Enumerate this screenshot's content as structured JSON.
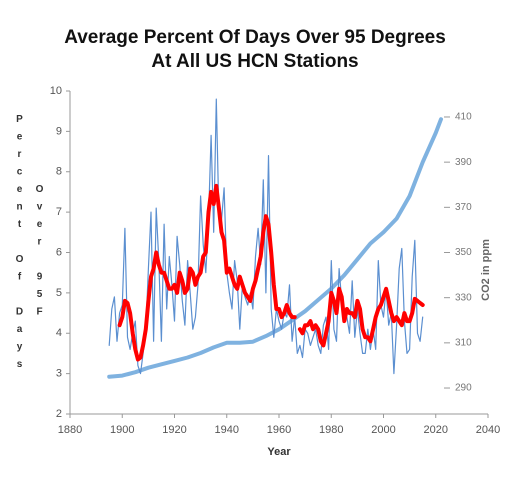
{
  "chart_data": {
    "type": "line",
    "title": [
      "Average Percent Of Days Over 95 Degrees",
      "At All US HCN Stations"
    ],
    "xlabel": "Year",
    "ylabel": [
      "Percent Of Days",
      "Over 95F"
    ],
    "y2label": "CO2 in ppm",
    "x": [
      1895,
      1896,
      1897,
      1898,
      1899,
      1900,
      1901,
      1902,
      1903,
      1904,
      1905,
      1906,
      1907,
      1908,
      1909,
      1910,
      1911,
      1912,
      1913,
      1914,
      1915,
      1916,
      1917,
      1918,
      1919,
      1920,
      1921,
      1922,
      1923,
      1924,
      1925,
      1926,
      1927,
      1928,
      1929,
      1930,
      1931,
      1932,
      1933,
      1934,
      1935,
      1936,
      1937,
      1938,
      1939,
      1940,
      1941,
      1942,
      1943,
      1944,
      1945,
      1946,
      1947,
      1948,
      1949,
      1950,
      1951,
      1952,
      1953,
      1954,
      1955,
      1956,
      1957,
      1958,
      1959,
      1960,
      1961,
      1962,
      1963,
      1964,
      1965,
      1966,
      1967,
      1968,
      1969,
      1970,
      1971,
      1972,
      1973,
      1974,
      1975,
      1976,
      1977,
      1978,
      1979,
      1980,
      1981,
      1982,
      1983,
      1984,
      1985,
      1986,
      1987,
      1988,
      1989,
      1990,
      1991,
      1992,
      1993,
      1994,
      1995,
      1996,
      1997,
      1998,
      1999,
      2000,
      2001,
      2002,
      2003,
      2004,
      2005,
      2006,
      2007,
      2008,
      2009,
      2010,
      2011,
      2012,
      2013,
      2014,
      2015
    ],
    "series": [
      {
        "color": "#5b8fd0",
        "values": [
          3.7,
          4.6,
          4.9,
          3.8,
          4.5,
          4.7,
          6.6,
          3.9,
          3.6,
          4.0,
          4.3,
          3.2,
          3.0,
          3.5,
          4.1,
          5.6,
          7.0,
          3.8,
          7.1,
          5.8,
          3.8,
          6.7,
          4.6,
          5.9,
          5.2,
          4.3,
          6.4,
          5.7,
          4.8,
          4.2,
          5.8,
          5.0,
          4.1,
          4.4,
          5.2,
          7.4,
          6.2,
          5.5,
          6.8,
          8.9,
          6.5,
          9.8,
          6.9,
          6.8,
          7.6,
          5.5,
          5.0,
          4.6,
          5.8,
          5.3,
          4.1,
          5.2,
          4.9,
          4.7,
          5.0,
          4.6,
          5.9,
          6.6,
          5.7,
          7.8,
          5.0,
          8.4,
          4.6,
          3.9,
          4.6,
          4.3,
          4.1,
          4.5,
          4.4,
          5.2,
          3.8,
          4.4,
          3.5,
          3.7,
          3.4,
          4.1,
          4.0,
          3.7,
          3.9,
          4.1,
          3.7,
          3.5,
          4.2,
          4.4,
          3.6,
          5.8,
          4.1,
          3.8,
          5.6,
          4.8,
          4.4,
          4.4,
          4.0,
          5.3,
          3.9,
          4.6,
          4.0,
          3.5,
          3.5,
          4.1,
          3.6,
          4.1,
          3.6,
          5.8,
          4.7,
          4.4,
          5.1,
          4.2,
          4.5,
          3.0,
          4.2,
          5.6,
          6.1,
          4.3,
          3.5,
          3.6,
          5.4,
          6.3,
          4.0,
          3.8,
          4.4
        ]
      },
      {
        "color": "#ff0000",
        "values": [
          null,
          null,
          null,
          null,
          4.2,
          4.4,
          4.8,
          4.75,
          4.5,
          4.0,
          3.6,
          3.35,
          3.4,
          3.7,
          4.1,
          4.8,
          5.4,
          5.6,
          6.0,
          5.7,
          5.5,
          5.5,
          5.3,
          5.1,
          5.1,
          5.2,
          5.0,
          5.5,
          5.3,
          5.0,
          5.1,
          5.6,
          5.5,
          5.2,
          5.4,
          5.5,
          5.9,
          6.0,
          7.0,
          7.5,
          7.2,
          7.65,
          7.1,
          6.5,
          6.3,
          5.5,
          5.6,
          5.4,
          5.2,
          5.1,
          5.4,
          5.2,
          5.0,
          4.9,
          4.8,
          5.1,
          5.3,
          5.6,
          5.9,
          6.5,
          6.9,
          6.7,
          6.0,
          5.2,
          4.6,
          4.6,
          4.4,
          4.5,
          4.7,
          4.5,
          4.4,
          4.4,
          null,
          4.1,
          4.0,
          4.2,
          4.2,
          4.3,
          4.1,
          4.2,
          4.1,
          3.8,
          3.7,
          4.0,
          4.3,
          5.0,
          4.8,
          4.5,
          5.1,
          4.9,
          4.3,
          4.6,
          4.5,
          4.5,
          4.4,
          4.8,
          4.6,
          4.1,
          3.9,
          3.9,
          3.8,
          4.1,
          4.4,
          4.6,
          4.7,
          4.9,
          5.1,
          4.8,
          4.5,
          4.3,
          4.4,
          4.3,
          4.2,
          4.5,
          4.3,
          4.3,
          4.5,
          4.85,
          4.8,
          4.75,
          4.7
        ]
      },
      {
        "color": "#7fb2e0",
        "axis": "y2",
        "x": [
          1895,
          1900,
          1905,
          1910,
          1915,
          1920,
          1925,
          1930,
          1935,
          1940,
          1945,
          1950,
          1955,
          1960,
          1965,
          1970,
          1975,
          1980,
          1985,
          1990,
          1995,
          2000,
          2005,
          2010,
          2015,
          2020,
          2022
        ],
        "values": [
          295,
          295.5,
          297,
          299,
          300.5,
          302,
          303.5,
          305.5,
          308,
          310,
          310,
          310.5,
          313,
          316,
          320,
          324,
          329,
          334,
          340,
          347,
          354,
          359,
          365,
          375,
          390,
          403,
          409
        ]
      }
    ],
    "xlim": [
      1880,
      2040
    ],
    "xticks": [
      1880,
      1900,
      1920,
      1940,
      1960,
      1980,
      2000,
      2020,
      2040
    ],
    "ylim": [
      2,
      10
    ],
    "yticks": [
      2,
      3,
      4,
      5,
      6,
      7,
      8,
      9,
      10
    ],
    "y2lim": [
      278.5,
      421.5
    ],
    "y2ticks": [
      290,
      310,
      330,
      350,
      370,
      390,
      410
    ],
    "grid": false
  }
}
